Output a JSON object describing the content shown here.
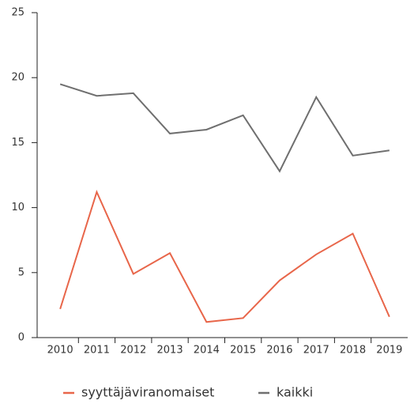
{
  "chart_data": {
    "type": "line",
    "categories": [
      "2010",
      "2011",
      "2012",
      "2013",
      "2014",
      "2015",
      "2016",
      "2017",
      "2018",
      "2019"
    ],
    "series": [
      {
        "name": "syyttäjäviranomaiset",
        "color": "#e8664a",
        "values": [
          2.2,
          11.2,
          4.9,
          6.5,
          1.2,
          1.5,
          4.4,
          6.4,
          8.0,
          1.6
        ]
      },
      {
        "name": "kaikki",
        "color": "#6f6f6f",
        "values": [
          19.5,
          18.6,
          18.8,
          15.7,
          16.0,
          17.1,
          12.8,
          18.5,
          14.0,
          14.4
        ]
      }
    ],
    "ylim": [
      0,
      25
    ],
    "yticks": [
      0,
      5,
      10,
      15,
      20,
      25
    ],
    "grid": false,
    "legend": "bottom"
  }
}
